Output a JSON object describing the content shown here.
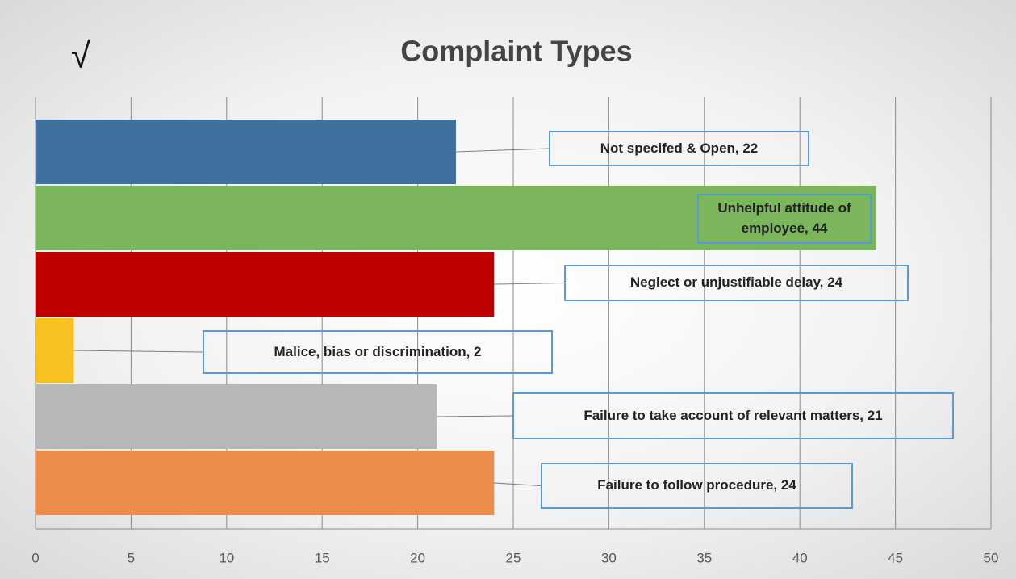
{
  "chart_data": {
    "type": "hbar",
    "title": "Complaint Types",
    "annotation": "√",
    "values": [
      22,
      44,
      24,
      2,
      21,
      24
    ],
    "value_labels": [
      "Not specifed & Open, 22",
      "Unhelpful attitude of employee, 44",
      "Neglect or unjustifiable delay, 24",
      "Malice, bias or discrimination, 2",
      "Failure to take account of relevant matters, 21",
      "Failure to follow procedure, 24"
    ],
    "colors": [
      "#41709e",
      "#7cb65c",
      "#c00000",
      "#f8c020",
      "#b7b7b7",
      "#ec8b4c"
    ],
    "xlim": [
      0,
      50
    ],
    "xticks": [
      0,
      5,
      10,
      15,
      20,
      25,
      30,
      35,
      40,
      45,
      50
    ],
    "grid": true
  }
}
